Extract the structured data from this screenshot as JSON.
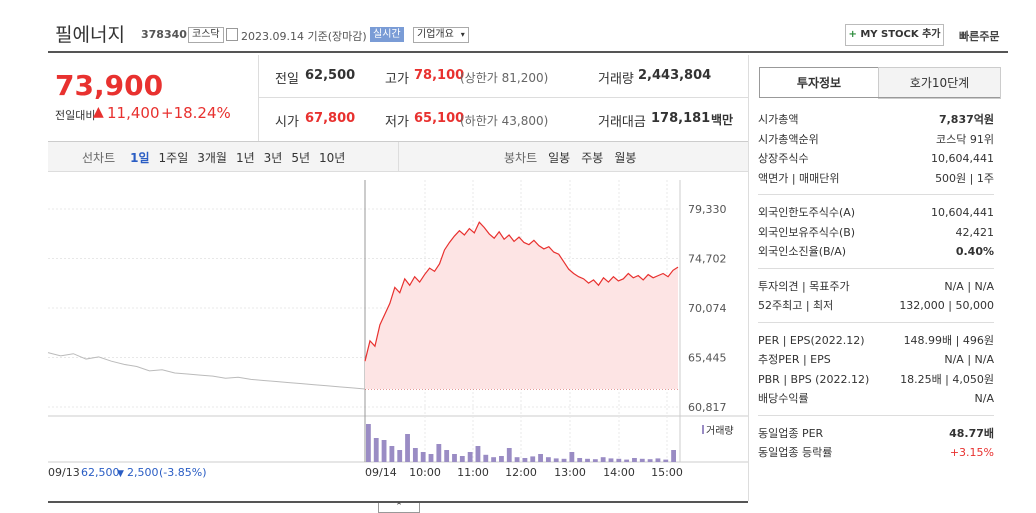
{
  "header": {
    "name": "필에너지",
    "code": "378340",
    "market": "코스닥",
    "date": "2023.09.14 기준(장마감)",
    "realtime": "실시간",
    "overview": "기업개요",
    "mystock": "MY STOCK 추가",
    "quick_order": "빠른주문"
  },
  "price": {
    "current": "73,900",
    "change_label": "전일대비",
    "change": "11,400",
    "change_pct": "+18.24%"
  },
  "summary": [
    {
      "label": "전일",
      "value": "62,500"
    },
    {
      "label": "고가",
      "value": "78,100",
      "note": "(상한가 81,200)"
    },
    {
      "label": "거래량",
      "value": "2,443,804"
    },
    {
      "label": "시가",
      "value": "67,800"
    },
    {
      "label": "저가",
      "value": "65,100",
      "note": "(하한가 43,800)"
    },
    {
      "label": "거래대금",
      "value": "178,181",
      "unit": "백만"
    }
  ],
  "toolbar": {
    "line_label": "선차트",
    "line_periods": [
      "1일",
      "1주일",
      "3개월",
      "1년",
      "3년",
      "5년",
      "10년"
    ],
    "candle_label": "봉차트",
    "candle_periods": [
      "일봉",
      "주봉",
      "월봉"
    ]
  },
  "price_chart": {
    "type": "line",
    "ylim": [
      60817,
      79330
    ],
    "yticks": [
      {
        "value": 79330,
        "label": "79,330"
      },
      {
        "value": 74702,
        "label": "74,702"
      },
      {
        "value": 70074,
        "label": "70,074"
      },
      {
        "value": 65445,
        "label": "65,445"
      },
      {
        "value": 60817,
        "label": "60,817"
      }
    ],
    "base": 62500,
    "xticks": [
      "09/14",
      "10:00",
      "11:00",
      "12:00",
      "13:00",
      "14:00",
      "15:00"
    ],
    "prev_label": {
      "date": "09/13",
      "close": "62,500",
      "change": "2,500",
      "pct": "(-3.85%)"
    },
    "previous": {
      "color": "#bbbbbb",
      "values": [
        65900,
        65600,
        65800,
        65300,
        65500,
        65100,
        64800,
        64600,
        64200,
        64300,
        64000,
        63900,
        63800,
        63700,
        63500,
        63600,
        63400,
        63300,
        63200,
        63100,
        63000,
        62900,
        62800,
        62700,
        62600,
        62500
      ]
    },
    "today": {
      "color": "#e8312f",
      "values": [
        65100,
        67000,
        66500,
        68500,
        69500,
        70500,
        72000,
        71500,
        72800,
        72200,
        73000,
        72500,
        73200,
        73800,
        73500,
        74200,
        75500,
        76200,
        76800,
        77300,
        76900,
        77500,
        77100,
        78100,
        77600,
        77000,
        76600,
        77200,
        76500,
        76900,
        76300,
        76700,
        76200,
        76000,
        76400,
        75900,
        75600,
        75800,
        75300,
        75100,
        74400,
        73700,
        73300,
        73000,
        72800,
        72400,
        72700,
        72200,
        72900,
        72500,
        73000,
        72600,
        72800,
        73300,
        72900,
        73100,
        72700,
        73200,
        72900,
        73100,
        73300,
        73000,
        73600,
        73900
      ]
    },
    "volume_label": "거래량",
    "volume": {
      "color": "#9a8cc4",
      "values": [
        95,
        60,
        55,
        40,
        30,
        70,
        35,
        25,
        20,
        45,
        30,
        20,
        15,
        25,
        40,
        18,
        12,
        15,
        35,
        12,
        10,
        14,
        20,
        12,
        9,
        8,
        25,
        10,
        8,
        7,
        12,
        9,
        8,
        6,
        10,
        8,
        7,
        9,
        6,
        30
      ]
    }
  },
  "invest": {
    "tabs": [
      "투자정보",
      "호가10단계"
    ],
    "sections": [
      [
        {
          "label": "시가총액",
          "value": "7,837억원"
        },
        {
          "label": "시가총액순위",
          "value": "코스닥 91위"
        },
        {
          "label": "상장주식수",
          "value": "10,604,441"
        },
        {
          "label": "액면가 | 매매단위",
          "value": "500원 | 1주"
        }
      ],
      [
        {
          "label": "외국인한도주식수(A)",
          "value": "10,604,441"
        },
        {
          "label": "외국인보유주식수(B)",
          "value": "42,421"
        },
        {
          "label": "외국인소진율(B/A)",
          "value": "0.40%"
        }
      ],
      [
        {
          "label": "투자의견 | 목표주가",
          "value": "N/A | N/A"
        },
        {
          "label": "52주최고 | 최저",
          "value": "132,000 | 50,000"
        }
      ],
      [
        {
          "label": "PER | EPS(2022.12)",
          "value": "148.99배 | 496원"
        },
        {
          "label": "추정PER | EPS",
          "value": "N/A | N/A"
        },
        {
          "label": "PBR | BPS (2022.12)",
          "value": "18.25배 | 4,050원"
        },
        {
          "label": "배당수익률",
          "value": "N/A"
        }
      ],
      [
        {
          "label": "동일업종 PER",
          "value": "48.77배"
        },
        {
          "label": "동일업종 등락률",
          "value": "+3.15%"
        }
      ]
    ]
  }
}
